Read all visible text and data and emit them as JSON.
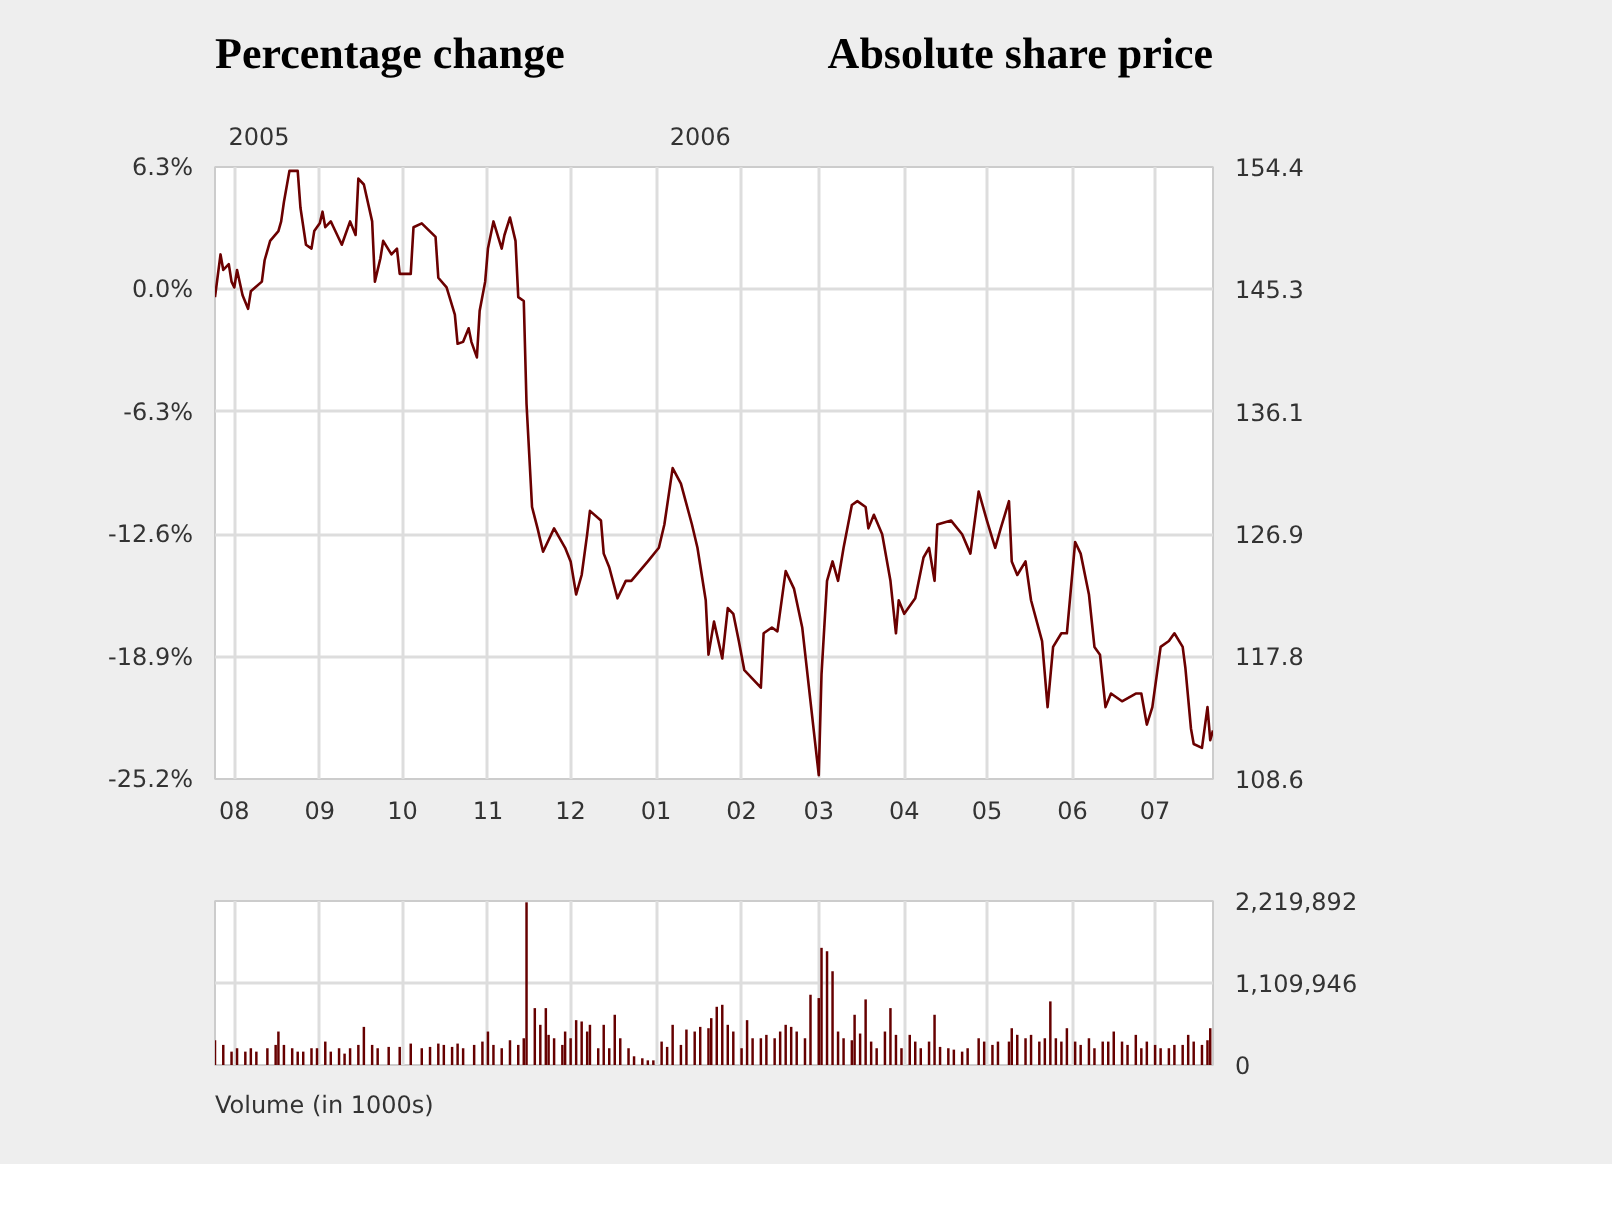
{
  "chart_data": [
    {
      "type": "line",
      "ylabel": "Percentage change",
      "y2label": "Absolute share price",
      "x": [
        "2005-07-25",
        "2005-07-27",
        "2005-07-28",
        "2005-07-30",
        "2005-07-31",
        "2005-08-01",
        "2005-08-02",
        "2005-08-04",
        "2005-08-06",
        "2005-08-07",
        "2005-08-11",
        "2005-08-12",
        "2005-08-14",
        "2005-08-17",
        "2005-08-18",
        "2005-08-19",
        "2005-08-21",
        "2005-08-24",
        "2005-08-25",
        "2005-08-27",
        "2005-08-29",
        "2005-08-30",
        "2005-09-01",
        "2005-09-02",
        "2005-09-03",
        "2005-09-05",
        "2005-09-06",
        "2005-09-09",
        "2005-09-12",
        "2005-09-14",
        "2005-09-15",
        "2005-09-17",
        "2005-09-20",
        "2005-09-21",
        "2005-09-23",
        "2005-09-24",
        "2005-09-27",
        "2005-09-29",
        "2005-09-30",
        "2005-10-04",
        "2005-10-05",
        "2005-10-08",
        "2005-10-13",
        "2005-10-14",
        "2005-10-17",
        "2005-10-20",
        "2005-10-21",
        "2005-10-23",
        "2005-10-25",
        "2005-10-26",
        "2005-10-28",
        "2005-10-29",
        "2005-10-31",
        "2005-11-01",
        "2005-11-03",
        "2005-11-06",
        "2005-11-07",
        "2005-11-09",
        "2005-11-11",
        "2005-11-12",
        "2005-11-14",
        "2005-11-15",
        "2005-11-17",
        "2005-11-19",
        "2005-11-21",
        "2005-11-25",
        "2005-11-29",
        "2005-12-01",
        "2005-12-03",
        "2005-12-05",
        "2005-12-07",
        "2005-12-08",
        "2005-12-12",
        "2005-12-13",
        "2005-12-15",
        "2005-12-18",
        "2005-12-21",
        "2005-12-23",
        "2005-12-29",
        "2006-01-02",
        "2006-01-04",
        "2006-01-07",
        "2006-01-10",
        "2006-01-14",
        "2006-01-16",
        "2006-01-19",
        "2006-01-20",
        "2006-01-22",
        "2006-01-25",
        "2006-01-27",
        "2006-01-29",
        "2006-01-31",
        "2006-02-02",
        "2006-02-08",
        "2006-02-09",
        "2006-02-12",
        "2006-02-14",
        "2006-02-17",
        "2006-02-20",
        "2006-02-23",
        "2006-02-26",
        "2006-03-01",
        "2006-03-02",
        "2006-03-04",
        "2006-03-06",
        "2006-03-08",
        "2006-03-10",
        "2006-03-13",
        "2006-03-15",
        "2006-03-18",
        "2006-03-19",
        "2006-03-21",
        "2006-03-24",
        "2006-03-27",
        "2006-03-29",
        "2006-03-30",
        "2006-04-01",
        "2006-04-05",
        "2006-04-08",
        "2006-04-10",
        "2006-04-12",
        "2006-04-13",
        "2006-04-18",
        "2006-04-22",
        "2006-04-25",
        "2006-04-28",
        "2006-05-01",
        "2006-05-04",
        "2006-05-06",
        "2006-05-09",
        "2006-05-10",
        "2006-05-12",
        "2006-05-15",
        "2006-05-17",
        "2006-05-21",
        "2006-05-23",
        "2006-05-25",
        "2006-05-28",
        "2006-05-30",
        "2006-06-02",
        "2006-06-04",
        "2006-06-07",
        "2006-06-09",
        "2006-06-11",
        "2006-06-13",
        "2006-06-15",
        "2006-06-19",
        "2006-06-24",
        "2006-06-26",
        "2006-06-28",
        "2006-06-30",
        "2006-07-03",
        "2006-07-06",
        "2006-07-08",
        "2006-07-11",
        "2006-07-12",
        "2006-07-14",
        "2006-07-15",
        "2006-07-18",
        "2006-07-20",
        "2006-07-21",
        "2006-07-22"
      ],
      "series": [
        {
          "color": "#6b0000",
          "values": [
            -0.4,
            1.8,
            1.0,
            1.3,
            0.4,
            0.1,
            1.0,
            -0.3,
            -1.0,
            -0.1,
            0.4,
            1.5,
            2.5,
            3.0,
            3.5,
            4.5,
            6.1,
            6.1,
            4.2,
            2.3,
            2.1,
            3.0,
            3.4,
            4.0,
            3.2,
            3.5,
            3.2,
            2.3,
            3.5,
            2.8,
            5.7,
            5.4,
            3.5,
            0.4,
            1.6,
            2.5,
            1.8,
            2.1,
            0.8,
            0.8,
            3.2,
            3.4,
            2.7,
            0.6,
            0.1,
            -1.3,
            -2.8,
            -2.7,
            -2.0,
            -2.7,
            -3.5,
            -1.1,
            0.4,
            2.1,
            3.5,
            2.1,
            2.8,
            3.7,
            2.5,
            -0.4,
            -0.6,
            -5.9,
            -11.2,
            -12.3,
            -13.5,
            -12.3,
            -13.3,
            -14.0,
            -15.7,
            -14.7,
            -12.6,
            -11.4,
            -11.9,
            -13.6,
            -14.3,
            -15.9,
            -15.0,
            -15.0,
            -14.0,
            -13.3,
            -12.1,
            -9.2,
            -10.0,
            -12.1,
            -13.3,
            -16.0,
            -18.8,
            -17.1,
            -19.0,
            -16.4,
            -16.7,
            -18.1,
            -19.6,
            -20.5,
            -17.7,
            -17.4,
            -17.6,
            -14.5,
            -15.4,
            -17.4,
            -21.2,
            -25.0,
            -19.8,
            -15.0,
            -14.0,
            -15.0,
            -13.3,
            -11.1,
            -10.9,
            -11.2,
            -12.3,
            -11.6,
            -12.6,
            -15.0,
            -17.7,
            -16.0,
            -16.7,
            -15.9,
            -13.8,
            -13.3,
            -15.0,
            -12.1,
            -11.9,
            -12.6,
            -13.6,
            -10.4,
            -11.9,
            -13.3,
            -12.3,
            -10.9,
            -14.0,
            -14.7,
            -14.0,
            -16.0,
            -18.1,
            -21.5,
            -18.4,
            -17.7,
            -17.7,
            -13.0,
            -13.6,
            -15.7,
            -18.4,
            -18.8,
            -21.5,
            -20.8,
            -21.2,
            -20.8,
            -20.8,
            -22.4,
            -21.5,
            -18.4,
            -18.1,
            -17.7,
            -18.4,
            -19.5,
            -22.6,
            -23.4,
            -23.6,
            -21.5,
            -23.2,
            -22.7
          ]
        }
      ],
      "xlim": [
        "2005-07-25",
        "2006-07-22"
      ],
      "xticks": [
        {
          "value": "2005-08-01",
          "label": "08"
        },
        {
          "value": "2005-09-01",
          "label": "09"
        },
        {
          "value": "2005-10-01",
          "label": "10"
        },
        {
          "value": "2005-11-01",
          "label": "11"
        },
        {
          "value": "2005-12-01",
          "label": "12"
        },
        {
          "value": "2006-01-01",
          "label": "01"
        },
        {
          "value": "2006-02-01",
          "label": "02"
        },
        {
          "value": "2006-03-01",
          "label": "03"
        },
        {
          "value": "2006-04-01",
          "label": "04"
        },
        {
          "value": "2006-05-01",
          "label": "05"
        },
        {
          "value": "2006-06-01",
          "label": "06"
        },
        {
          "value": "2006-07-01",
          "label": "07"
        }
      ],
      "x2lim": [
        "2005-07-25",
        "2006-07-22"
      ],
      "x2ticks": [
        {
          "value": "2005-08-10",
          "label": "2005"
        },
        {
          "value": "2006-01-17",
          "label": "2006"
        }
      ],
      "ylim": [
        -25.2,
        6.3
      ],
      "yticks": [
        {
          "value": -25.2,
          "label": "-25.2%"
        },
        {
          "value": -18.9,
          "label": "-18.9%"
        },
        {
          "value": -12.6,
          "label": "-12.6%"
        },
        {
          "value": -6.3,
          "label": "-6.3%"
        },
        {
          "value": 0,
          "label": "0.0%"
        },
        {
          "value": 6.3,
          "label": "6.3%"
        }
      ],
      "y2lim": [
        108.6,
        154.4
      ],
      "y2ticks": [
        108.6,
        117.8,
        126.9,
        136.1,
        145.3,
        154.4
      ],
      "grid": true
    },
    {
      "type": "bar",
      "x": [
        "2005-07-25",
        "2005-07-28",
        "2005-07-31",
        "2005-08-02",
        "2005-08-05",
        "2005-08-07",
        "2005-08-09",
        "2005-08-13",
        "2005-08-16",
        "2005-08-17",
        "2005-08-19",
        "2005-08-22",
        "2005-08-24",
        "2005-08-26",
        "2005-08-29",
        "2005-08-31",
        "2005-09-03",
        "2005-09-05",
        "2005-09-08",
        "2005-09-10",
        "2005-09-12",
        "2005-09-15",
        "2005-09-17",
        "2005-09-20",
        "2005-09-22",
        "2005-09-26",
        "2005-09-30",
        "2005-10-04",
        "2005-10-08",
        "2005-10-11",
        "2005-10-14",
        "2005-10-16",
        "2005-10-19",
        "2005-10-21",
        "2005-10-23",
        "2005-10-27",
        "2005-10-30",
        "2005-11-01",
        "2005-11-03",
        "2005-11-06",
        "2005-11-09",
        "2005-11-12",
        "2005-11-14",
        "2005-11-15",
        "2005-11-18",
        "2005-11-20",
        "2005-11-22",
        "2005-11-23",
        "2005-11-25",
        "2005-11-28",
        "2005-11-29",
        "2005-12-01",
        "2005-12-03",
        "2005-12-05",
        "2005-12-07",
        "2005-12-08",
        "2005-12-11",
        "2005-12-13",
        "2005-12-15",
        "2005-12-17",
        "2005-12-19",
        "2005-12-22",
        "2005-12-24",
        "2005-12-27",
        "2005-12-29",
        "2005-12-31",
        "2006-01-03",
        "2006-01-05",
        "2006-01-07",
        "2006-01-10",
        "2006-01-12",
        "2006-01-15",
        "2006-01-17",
        "2006-01-20",
        "2006-01-21",
        "2006-01-23",
        "2006-01-25",
        "2006-01-27",
        "2006-01-29",
        "2006-02-01",
        "2006-02-03",
        "2006-02-05",
        "2006-02-08",
        "2006-02-10",
        "2006-02-13",
        "2006-02-15",
        "2006-02-17",
        "2006-02-19",
        "2006-02-21",
        "2006-02-24",
        "2006-02-26",
        "2006-03-01",
        "2006-03-02",
        "2006-03-04",
        "2006-03-06",
        "2006-03-08",
        "2006-03-10",
        "2006-03-13",
        "2006-03-14",
        "2006-03-16",
        "2006-03-18",
        "2006-03-20",
        "2006-03-22",
        "2006-03-25",
        "2006-03-27",
        "2006-03-29",
        "2006-03-31",
        "2006-04-03",
        "2006-04-05",
        "2006-04-07",
        "2006-04-10",
        "2006-04-12",
        "2006-04-14",
        "2006-04-17",
        "2006-04-19",
        "2006-04-22",
        "2006-04-24",
        "2006-04-28",
        "2006-04-30",
        "2006-05-03",
        "2006-05-05",
        "2006-05-09",
        "2006-05-10",
        "2006-05-12",
        "2006-05-15",
        "2006-05-17",
        "2006-05-20",
        "2006-05-22",
        "2006-05-24",
        "2006-05-26",
        "2006-05-28",
        "2006-05-30",
        "2006-06-02",
        "2006-06-04",
        "2006-06-07",
        "2006-06-09",
        "2006-06-12",
        "2006-06-14",
        "2006-06-16",
        "2006-06-19",
        "2006-06-21",
        "2006-06-24",
        "2006-06-26",
        "2006-06-28",
        "2006-07-01",
        "2006-07-03",
        "2006-07-06",
        "2006-07-08",
        "2006-07-11",
        "2006-07-13",
        "2006-07-15",
        "2006-07-18",
        "2006-07-20",
        "2006-07-21"
      ],
      "series": [
        {
          "color": "#660000",
          "values": [
            335000,
            272000,
            181000,
            227000,
            181000,
            227000,
            181000,
            227000,
            272000,
            453000,
            272000,
            227000,
            181000,
            181000,
            227000,
            227000,
            317000,
            181000,
            227000,
            154000,
            227000,
            272000,
            516000,
            272000,
            227000,
            245000,
            245000,
            290000,
            227000,
            245000,
            290000,
            272000,
            245000,
            290000,
            227000,
            272000,
            317000,
            453000,
            272000,
            227000,
            335000,
            272000,
            362000,
            2202000,
            770000,
            544000,
            770000,
            408000,
            362000,
            272000,
            453000,
            362000,
            607000,
            589000,
            453000,
            544000,
            227000,
            544000,
            227000,
            680000,
            362000,
            227000,
            118000,
            91000,
            63000,
            63000,
            317000,
            245000,
            544000,
            272000,
            480000,
            453000,
            516000,
            498000,
            634000,
            788000,
            815000,
            544000,
            453000,
            227000,
            607000,
            362000,
            362000,
            408000,
            362000,
            453000,
            544000,
            516000,
            453000,
            362000,
            951000,
            906000,
            1586000,
            1540000,
            1269000,
            453000,
            362000,
            335000,
            680000,
            426000,
            888000,
            317000,
            227000,
            453000,
            770000,
            408000,
            227000,
            408000,
            317000,
            227000,
            317000,
            680000,
            245000,
            227000,
            208000,
            181000,
            227000,
            362000,
            317000,
            272000,
            317000,
            317000,
            498000,
            408000,
            362000,
            408000,
            317000,
            362000,
            861000,
            362000,
            317000,
            498000,
            317000,
            272000,
            362000,
            227000,
            317000,
            317000,
            453000,
            317000,
            272000,
            408000,
            227000,
            317000,
            272000,
            227000,
            227000,
            272000,
            272000,
            408000,
            317000,
            272000,
            335000,
            498000
          ]
        }
      ],
      "xlim": [
        "2005-07-25",
        "2006-07-22"
      ],
      "xticks": [
        {
          "value": "2005-08-01",
          "label": null
        },
        {
          "value": "2005-09-01",
          "label": null
        },
        {
          "value": "2005-10-01",
          "label": null
        },
        {
          "value": "2005-11-01",
          "label": null
        },
        {
          "value": "2005-12-01",
          "label": null
        },
        {
          "value": "2006-01-01",
          "label": null
        },
        {
          "value": "2006-02-01",
          "label": null
        },
        {
          "value": "2006-03-01",
          "label": null
        },
        {
          "value": "2006-04-01",
          "label": null
        },
        {
          "value": "2006-05-01",
          "label": null
        },
        {
          "value": "2006-06-01",
          "label": null
        },
        {
          "value": "2006-07-01",
          "label": null
        }
      ],
      "ylim": [
        0,
        2219892
      ],
      "yticks": [
        0,
        {
          "value": 1109946,
          "label": "1,109,946"
        },
        {
          "value": 2219892,
          "label": "2,219,892"
        }
      ],
      "tick_labels": "y",
      "grid": true,
      "annotations": [
        "Volume (in 1000s)"
      ]
    }
  ]
}
